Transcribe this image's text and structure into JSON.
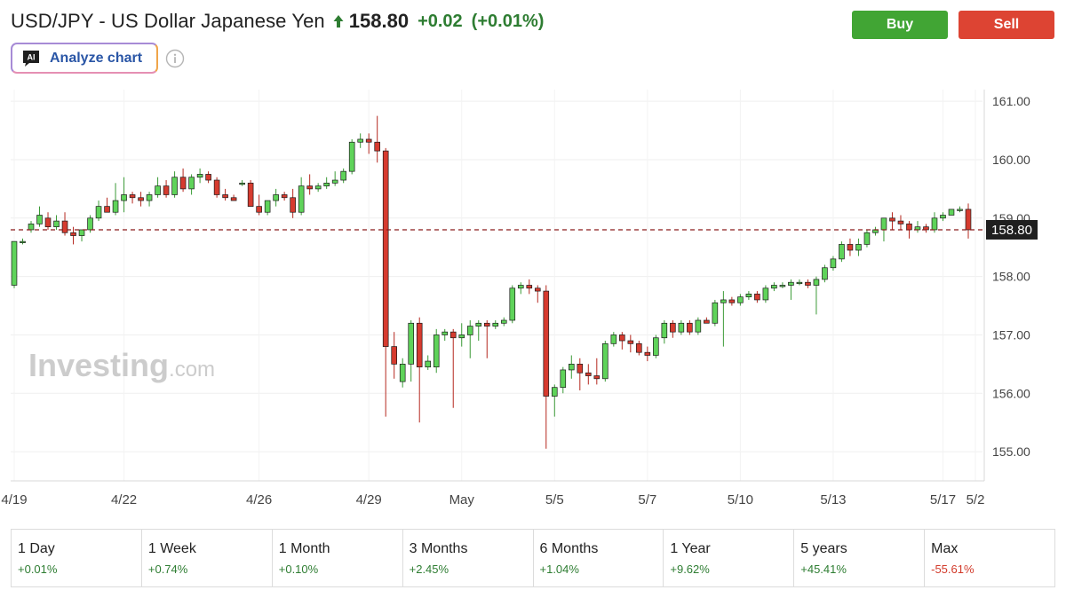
{
  "header": {
    "title": "USD/JPY - US Dollar Japanese Yen",
    "price": "158.80",
    "change": "+0.02",
    "change_pct": "(+0.01%)"
  },
  "actions": {
    "buy_label": "Buy",
    "sell_label": "Sell"
  },
  "analyze": {
    "label": "Analyze chart",
    "icon_text": "AI"
  },
  "colors": {
    "up": "#5fd35a",
    "down": "#d63b2f",
    "positive_text": "#2e7d32",
    "negative_text": "#d23a2a",
    "buy": "#41a534",
    "sell": "#dd4433"
  },
  "watermark": {
    "brand": "Investing",
    "suffix": ".com"
  },
  "chart_data": {
    "type": "candlestick",
    "ylim": [
      154.5,
      161.2
    ],
    "yticks": [
      "161.00",
      "160.00",
      "159.00",
      "158.00",
      "157.00",
      "156.00",
      "155.00"
    ],
    "xticks": [
      "4/19",
      "4/22",
      "4/26",
      "4/29",
      "May",
      "5/5",
      "5/7",
      "5/10",
      "5/13",
      "5/17",
      "5/2"
    ],
    "current_price": 158.8,
    "current_price_label": "158.80",
    "grid": true,
    "candles": [
      [
        157.85,
        158.6,
        157.8,
        158.6
      ],
      [
        158.6,
        158.65,
        158.55,
        158.6
      ],
      [
        158.8,
        158.95,
        158.75,
        158.9
      ],
      [
        158.9,
        159.2,
        158.85,
        159.05
      ],
      [
        159.0,
        159.1,
        158.8,
        158.85
      ],
      [
        158.85,
        159.05,
        158.8,
        158.95
      ],
      [
        158.95,
        159.1,
        158.7,
        158.75
      ],
      [
        158.75,
        158.85,
        158.55,
        158.7
      ],
      [
        158.7,
        158.8,
        158.6,
        158.8
      ],
      [
        158.8,
        159.05,
        158.75,
        159.0
      ],
      [
        159.0,
        159.3,
        158.95,
        159.2
      ],
      [
        159.2,
        159.35,
        159.1,
        159.1
      ],
      [
        159.1,
        159.6,
        159.05,
        159.3
      ],
      [
        159.3,
        159.7,
        159.1,
        159.4
      ],
      [
        159.4,
        159.45,
        159.25,
        159.35
      ],
      [
        159.35,
        159.45,
        159.2,
        159.3
      ],
      [
        159.3,
        159.45,
        159.2,
        159.4
      ],
      [
        159.4,
        159.7,
        159.35,
        159.55
      ],
      [
        159.55,
        159.65,
        159.35,
        159.4
      ],
      [
        159.4,
        159.8,
        159.35,
        159.7
      ],
      [
        159.7,
        159.85,
        159.45,
        159.5
      ],
      [
        159.5,
        159.75,
        159.4,
        159.7
      ],
      [
        159.7,
        159.85,
        159.6,
        159.75
      ],
      [
        159.75,
        159.8,
        159.6,
        159.65
      ],
      [
        159.65,
        159.7,
        159.35,
        159.4
      ],
      [
        159.4,
        159.5,
        159.3,
        159.35
      ],
      [
        159.35,
        159.4,
        159.3,
        159.3
      ],
      [
        159.6,
        159.65,
        159.55,
        159.6
      ],
      [
        159.6,
        159.65,
        159.2,
        159.2
      ],
      [
        159.2,
        159.4,
        159.05,
        159.1
      ],
      [
        159.1,
        159.3,
        159.05,
        159.3
      ],
      [
        159.3,
        159.5,
        159.2,
        159.4
      ],
      [
        159.4,
        159.45,
        159.3,
        159.35
      ],
      [
        159.35,
        159.5,
        159.0,
        159.1
      ],
      [
        159.1,
        159.7,
        159.05,
        159.55
      ],
      [
        159.55,
        159.75,
        159.4,
        159.5
      ],
      [
        159.5,
        159.6,
        159.45,
        159.55
      ],
      [
        159.55,
        159.7,
        159.5,
        159.6
      ],
      [
        159.6,
        159.8,
        159.55,
        159.65
      ],
      [
        159.65,
        159.85,
        159.6,
        159.8
      ],
      [
        159.8,
        160.35,
        159.75,
        160.3
      ],
      [
        160.3,
        160.45,
        160.2,
        160.35
      ],
      [
        160.35,
        160.45,
        160.1,
        160.3
      ],
      [
        160.3,
        160.75,
        159.95,
        160.15
      ],
      [
        160.15,
        160.2,
        155.6,
        156.8
      ],
      [
        156.8,
        157.05,
        156.25,
        156.5
      ],
      [
        156.2,
        156.6,
        156.1,
        156.5
      ],
      [
        156.5,
        157.25,
        156.2,
        157.2
      ],
      [
        157.2,
        157.3,
        155.5,
        156.45
      ],
      [
        156.45,
        156.65,
        156.4,
        156.55
      ],
      [
        156.45,
        157.1,
        156.35,
        157.0
      ],
      [
        157.0,
        157.1,
        156.9,
        157.05
      ],
      [
        157.05,
        157.1,
        155.75,
        156.95
      ],
      [
        156.95,
        157.2,
        156.8,
        157.0
      ],
      [
        157.0,
        157.25,
        156.6,
        157.15
      ],
      [
        157.15,
        157.25,
        156.9,
        157.2
      ],
      [
        157.2,
        157.25,
        156.6,
        157.15
      ],
      [
        157.15,
        157.25,
        157.1,
        157.2
      ],
      [
        157.2,
        157.3,
        157.15,
        157.25
      ],
      [
        157.25,
        157.85,
        157.2,
        157.8
      ],
      [
        157.8,
        157.9,
        157.7,
        157.85
      ],
      [
        157.85,
        157.95,
        157.7,
        157.8
      ],
      [
        157.8,
        157.85,
        157.55,
        157.75
      ],
      [
        157.75,
        157.85,
        155.05,
        155.95
      ],
      [
        155.95,
        156.15,
        155.6,
        156.1
      ],
      [
        156.1,
        156.45,
        156.0,
        156.4
      ],
      [
        156.4,
        156.65,
        156.25,
        156.5
      ],
      [
        156.5,
        156.6,
        156.05,
        156.35
      ],
      [
        156.35,
        156.5,
        156.15,
        156.3
      ],
      [
        156.3,
        156.6,
        156.15,
        156.25
      ],
      [
        156.25,
        156.9,
        156.2,
        156.85
      ],
      [
        156.85,
        157.05,
        156.8,
        157.0
      ],
      [
        157.0,
        157.05,
        156.75,
        156.9
      ],
      [
        156.9,
        157.0,
        156.7,
        156.85
      ],
      [
        156.85,
        156.9,
        156.65,
        156.7
      ],
      [
        156.7,
        156.8,
        156.55,
        156.65
      ],
      [
        156.65,
        157.0,
        156.6,
        156.95
      ],
      [
        156.95,
        157.25,
        156.85,
        157.2
      ],
      [
        157.2,
        157.25,
        156.95,
        157.05
      ],
      [
        157.05,
        157.25,
        157.0,
        157.2
      ],
      [
        157.2,
        157.25,
        157.0,
        157.05
      ],
      [
        157.05,
        157.3,
        157.0,
        157.25
      ],
      [
        157.25,
        157.3,
        157.2,
        157.2
      ],
      [
        157.2,
        157.6,
        157.15,
        157.55
      ],
      [
        157.55,
        157.75,
        156.8,
        157.6
      ],
      [
        157.6,
        157.65,
        157.5,
        157.55
      ],
      [
        157.55,
        157.7,
        157.5,
        157.65
      ],
      [
        157.65,
        157.75,
        157.6,
        157.7
      ],
      [
        157.7,
        157.75,
        157.55,
        157.6
      ],
      [
        157.6,
        157.85,
        157.55,
        157.8
      ],
      [
        157.8,
        157.9,
        157.75,
        157.85
      ],
      [
        157.85,
        157.9,
        157.8,
        157.85
      ],
      [
        157.85,
        157.95,
        157.6,
        157.9
      ],
      [
        157.9,
        157.95,
        157.85,
        157.9
      ],
      [
        157.9,
        157.95,
        157.8,
        157.85
      ],
      [
        157.85,
        158.0,
        157.35,
        157.95
      ],
      [
        157.95,
        158.2,
        157.9,
        158.15
      ],
      [
        158.15,
        158.35,
        158.1,
        158.3
      ],
      [
        158.3,
        158.6,
        158.25,
        158.55
      ],
      [
        158.55,
        158.65,
        158.35,
        158.45
      ],
      [
        158.45,
        158.65,
        158.35,
        158.55
      ],
      [
        158.55,
        158.8,
        158.5,
        158.75
      ],
      [
        158.75,
        158.85,
        158.7,
        158.8
      ],
      [
        158.8,
        159.0,
        158.6,
        159.0
      ],
      [
        159.0,
        159.1,
        158.8,
        158.95
      ],
      [
        158.95,
        159.05,
        158.8,
        158.9
      ],
      [
        158.9,
        158.95,
        158.65,
        158.8
      ],
      [
        158.8,
        158.95,
        158.75,
        158.85
      ],
      [
        158.85,
        158.9,
        158.75,
        158.8
      ],
      [
        158.8,
        159.1,
        158.75,
        159.0
      ],
      [
        159.0,
        159.1,
        158.95,
        159.05
      ],
      [
        159.05,
        159.15,
        159.05,
        159.15
      ],
      [
        159.15,
        159.2,
        159.1,
        159.15
      ],
      [
        159.15,
        159.25,
        158.65,
        158.8
      ]
    ]
  },
  "periods": [
    {
      "label": "1 Day",
      "value": "+0.01%",
      "dir": "pos"
    },
    {
      "label": "1 Week",
      "value": "+0.74%",
      "dir": "pos"
    },
    {
      "label": "1 Month",
      "value": "+0.10%",
      "dir": "pos"
    },
    {
      "label": "3 Months",
      "value": "+2.45%",
      "dir": "pos"
    },
    {
      "label": "6 Months",
      "value": "+1.04%",
      "dir": "pos"
    },
    {
      "label": "1 Year",
      "value": "+9.62%",
      "dir": "pos"
    },
    {
      "label": "5 years",
      "value": "+45.41%",
      "dir": "pos"
    },
    {
      "label": "Max",
      "value": "-55.61%",
      "dir": "neg"
    }
  ]
}
